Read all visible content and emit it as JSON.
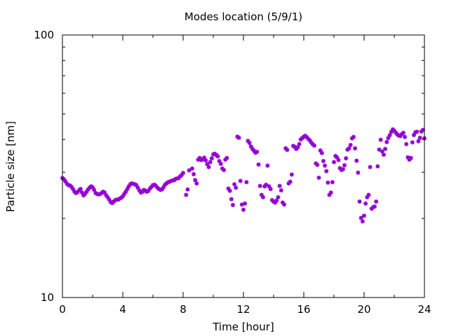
{
  "chart_data": {
    "type": "scatter",
    "title": "Modes location (5/9/1)",
    "xlabel": "Time [hour]",
    "ylabel": "Particle size [nm]",
    "xlim": [
      0,
      24
    ],
    "ylim": [
      10,
      100
    ],
    "yscale": "log",
    "xticks": [
      0,
      4,
      8,
      12,
      16,
      20,
      24
    ],
    "xtick_labels": [
      "0",
      "4",
      "8",
      "12",
      "16",
      "20",
      "24"
    ],
    "yticks": [
      10,
      100
    ],
    "ytick_labels": [
      "10",
      "100"
    ],
    "grid": false,
    "legend": "none",
    "marker_color": "#9400d3",
    "marker": "star",
    "series": [
      {
        "points": [
          [
            0.0,
            28.5
          ],
          [
            0.1,
            28.2
          ],
          [
            0.2,
            27.7
          ],
          [
            0.3,
            27.1
          ],
          [
            0.4,
            26.8
          ],
          [
            0.5,
            26.7
          ],
          [
            0.6,
            26.4
          ],
          [
            0.7,
            25.9
          ],
          [
            0.8,
            25.3
          ],
          [
            0.9,
            25.0
          ],
          [
            1.0,
            25.2
          ],
          [
            1.1,
            25.6
          ],
          [
            1.2,
            25.9
          ],
          [
            1.3,
            25.1
          ],
          [
            1.4,
            24.5
          ],
          [
            1.5,
            24.8
          ],
          [
            1.6,
            25.3
          ],
          [
            1.7,
            25.8
          ],
          [
            1.8,
            26.2
          ],
          [
            1.9,
            26.5
          ],
          [
            2.0,
            26.3
          ],
          [
            2.1,
            25.7
          ],
          [
            2.2,
            25.0
          ],
          [
            2.3,
            24.8
          ],
          [
            2.4,
            24.7
          ],
          [
            2.5,
            24.8
          ],
          [
            2.6,
            25.0
          ],
          [
            2.7,
            25.3
          ],
          [
            2.8,
            25.1
          ],
          [
            2.9,
            24.5
          ],
          [
            3.0,
            24.1
          ],
          [
            3.1,
            23.6
          ],
          [
            3.2,
            23.1
          ],
          [
            3.3,
            22.9
          ],
          [
            3.4,
            23.2
          ],
          [
            3.5,
            23.5
          ],
          [
            3.6,
            23.6
          ],
          [
            3.7,
            23.6
          ],
          [
            3.8,
            23.8
          ],
          [
            3.9,
            24.0
          ],
          [
            4.0,
            24.3
          ],
          [
            4.1,
            24.8
          ],
          [
            4.2,
            25.3
          ],
          [
            4.3,
            25.9
          ],
          [
            4.4,
            26.5
          ],
          [
            4.5,
            27.0
          ],
          [
            4.6,
            27.2
          ],
          [
            4.7,
            27.1
          ],
          [
            4.8,
            27.0
          ],
          [
            4.9,
            26.8
          ],
          [
            5.0,
            26.2
          ],
          [
            5.1,
            25.6
          ],
          [
            5.2,
            25.1
          ],
          [
            5.3,
            25.3
          ],
          [
            5.4,
            25.7
          ],
          [
            5.5,
            25.5
          ],
          [
            5.6,
            25.3
          ],
          [
            5.7,
            25.5
          ],
          [
            5.8,
            26.0
          ],
          [
            5.9,
            26.4
          ],
          [
            6.0,
            26.8
          ],
          [
            6.1,
            26.9
          ],
          [
            6.2,
            26.6
          ],
          [
            6.3,
            26.2
          ],
          [
            6.4,
            25.9
          ],
          [
            6.5,
            25.7
          ],
          [
            6.6,
            25.8
          ],
          [
            6.7,
            26.3
          ],
          [
            6.8,
            26.9
          ],
          [
            6.9,
            27.2
          ],
          [
            7.0,
            27.5
          ],
          [
            7.1,
            27.6
          ],
          [
            7.2,
            27.8
          ],
          [
            7.3,
            27.9
          ],
          [
            7.4,
            28.0
          ],
          [
            7.5,
            28.3
          ],
          [
            7.6,
            28.4
          ],
          [
            7.7,
            28.5
          ],
          [
            7.8,
            28.9
          ],
          [
            7.9,
            29.3
          ],
          [
            8.0,
            29.8
          ],
          [
            8.2,
            24.6
          ],
          [
            8.3,
            25.8
          ],
          [
            8.4,
            30.5
          ],
          [
            8.6,
            31.0
          ],
          [
            8.7,
            29.5
          ],
          [
            8.8,
            28.0
          ],
          [
            8.9,
            27.2
          ],
          [
            9.0,
            33.5
          ],
          [
            9.1,
            34.0
          ],
          [
            9.2,
            33.4
          ],
          [
            9.3,
            33.6
          ],
          [
            9.4,
            34.1
          ],
          [
            9.5,
            33.3
          ],
          [
            9.6,
            32.2
          ],
          [
            9.7,
            31.4
          ],
          [
            9.8,
            32.8
          ],
          [
            9.9,
            33.9
          ],
          [
            10.0,
            35.1
          ],
          [
            10.1,
            35.3
          ],
          [
            10.2,
            34.9
          ],
          [
            10.3,
            34.5
          ],
          [
            10.4,
            33.1
          ],
          [
            10.5,
            32.3
          ],
          [
            10.6,
            31.0
          ],
          [
            10.7,
            30.6
          ],
          [
            10.8,
            33.5
          ],
          [
            10.9,
            34.0
          ],
          [
            11.0,
            26.0
          ],
          [
            11.1,
            25.5
          ],
          [
            11.2,
            23.7
          ],
          [
            11.3,
            22.5
          ],
          [
            11.4,
            27.0
          ],
          [
            11.5,
            26.2
          ],
          [
            11.6,
            41.0
          ],
          [
            11.7,
            40.6
          ],
          [
            11.8,
            27.8
          ],
          [
            11.9,
            22.6
          ],
          [
            12.0,
            21.6
          ],
          [
            12.1,
            22.8
          ],
          [
            12.2,
            27.5
          ],
          [
            12.3,
            39.5
          ],
          [
            12.4,
            38.8
          ],
          [
            12.5,
            37.6
          ],
          [
            12.6,
            36.8
          ],
          [
            12.7,
            36.2
          ],
          [
            12.8,
            35.6
          ],
          [
            12.9,
            35.9
          ],
          [
            13.0,
            32.1
          ],
          [
            13.1,
            26.6
          ],
          [
            13.2,
            24.6
          ],
          [
            13.3,
            24.1
          ],
          [
            13.4,
            26.5
          ],
          [
            13.5,
            26.9
          ],
          [
            13.6,
            31.8
          ],
          [
            13.7,
            26.5
          ],
          [
            13.8,
            25.9
          ],
          [
            13.9,
            23.5
          ],
          [
            14.0,
            23.2
          ],
          [
            14.1,
            23.0
          ],
          [
            14.2,
            23.4
          ],
          [
            14.3,
            24.1
          ],
          [
            14.4,
            26.6
          ],
          [
            14.5,
            25.6
          ],
          [
            14.6,
            23.0
          ],
          [
            14.7,
            22.6
          ],
          [
            14.8,
            37.0
          ],
          [
            14.9,
            36.5
          ],
          [
            15.0,
            27.2
          ],
          [
            15.1,
            27.6
          ],
          [
            15.2,
            29.4
          ],
          [
            15.3,
            37.8
          ],
          [
            15.4,
            37.5
          ],
          [
            15.5,
            36.8
          ],
          [
            15.6,
            37.3
          ],
          [
            15.7,
            38.4
          ],
          [
            15.8,
            40.0
          ],
          [
            15.9,
            40.5
          ],
          [
            16.0,
            41.0
          ],
          [
            16.1,
            41.3
          ],
          [
            16.2,
            40.8
          ],
          [
            16.3,
            40.2
          ],
          [
            16.4,
            39.7
          ],
          [
            16.5,
            38.9
          ],
          [
            16.6,
            38.3
          ],
          [
            16.7,
            37.9
          ],
          [
            16.8,
            32.4
          ],
          [
            16.9,
            32.0
          ],
          [
            17.0,
            28.6
          ],
          [
            17.1,
            36.3
          ],
          [
            17.2,
            35.5
          ],
          [
            17.3,
            33.1
          ],
          [
            17.4,
            31.8
          ],
          [
            17.5,
            30.3
          ],
          [
            17.6,
            27.4
          ],
          [
            17.7,
            24.6
          ],
          [
            17.8,
            25.1
          ],
          [
            17.9,
            27.5
          ],
          [
            18.0,
            32.8
          ],
          [
            18.1,
            34.6
          ],
          [
            18.2,
            34.2
          ],
          [
            18.3,
            33.4
          ],
          [
            18.4,
            31.1
          ],
          [
            18.5,
            30.6
          ],
          [
            18.6,
            30.8
          ],
          [
            18.7,
            31.9
          ],
          [
            18.8,
            33.9
          ],
          [
            18.9,
            36.6
          ],
          [
            19.0,
            37.0
          ],
          [
            19.1,
            38.1
          ],
          [
            19.2,
            40.4
          ],
          [
            19.3,
            40.9
          ],
          [
            19.4,
            37.0
          ],
          [
            19.5,
            33.2
          ],
          [
            19.6,
            29.9
          ],
          [
            19.7,
            23.2
          ],
          [
            19.8,
            20.1
          ],
          [
            19.9,
            19.5
          ],
          [
            20.0,
            20.5
          ],
          [
            20.1,
            22.8
          ],
          [
            20.2,
            24.1
          ],
          [
            20.3,
            24.6
          ],
          [
            20.4,
            31.4
          ],
          [
            20.5,
            21.8
          ],
          [
            20.6,
            22.1
          ],
          [
            20.7,
            22.2
          ],
          [
            20.8,
            23.2
          ],
          [
            20.9,
            31.6
          ],
          [
            21.0,
            36.6
          ],
          [
            21.1,
            39.9
          ],
          [
            21.2,
            36.0
          ],
          [
            21.3,
            35.0
          ],
          [
            21.4,
            36.8
          ],
          [
            21.5,
            39.1
          ],
          [
            21.6,
            40.5
          ],
          [
            21.7,
            41.5
          ],
          [
            21.8,
            42.7
          ],
          [
            21.9,
            43.7
          ],
          [
            22.0,
            43.2
          ],
          [
            22.1,
            42.5
          ],
          [
            22.2,
            41.8
          ],
          [
            22.3,
            41.4
          ],
          [
            22.4,
            41.2
          ],
          [
            22.5,
            41.9
          ],
          [
            22.6,
            42.4
          ],
          [
            22.7,
            40.9
          ],
          [
            22.8,
            38.4
          ],
          [
            22.9,
            34.2
          ],
          [
            23.0,
            33.5
          ],
          [
            23.1,
            34.0
          ],
          [
            23.2,
            39.0
          ],
          [
            23.3,
            41.6
          ],
          [
            23.4,
            42.6
          ],
          [
            23.5,
            42.8
          ],
          [
            23.6,
            39.4
          ],
          [
            23.7,
            40.6
          ],
          [
            23.8,
            42.9
          ],
          [
            23.9,
            43.5
          ],
          [
            24.0,
            40.4
          ]
        ]
      }
    ]
  }
}
